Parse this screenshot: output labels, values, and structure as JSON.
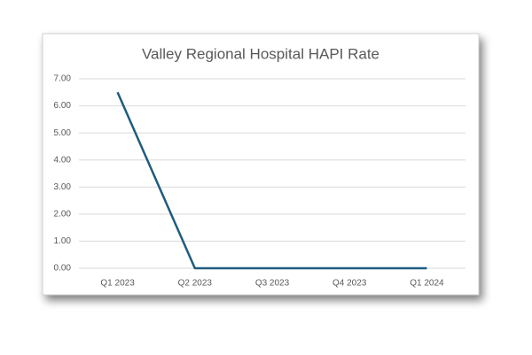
{
  "chart_data": {
    "type": "line",
    "title": "Valley Regional Hospital HAPI Rate",
    "categories": [
      "Q1 2023",
      "Q2 2023",
      "Q3 2023",
      "Q4 2023",
      "Q1 2024"
    ],
    "values": [
      6.5,
      0,
      0,
      0,
      0
    ],
    "color": "#1f5c7e",
    "ylim": [
      0,
      7
    ],
    "yticks": [
      {
        "value": 0,
        "label": "0.00"
      },
      {
        "value": 1,
        "label": "1.00"
      },
      {
        "value": 2,
        "label": "2.00"
      },
      {
        "value": 3,
        "label": "3.00"
      },
      {
        "value": 4,
        "label": "4.00"
      },
      {
        "value": 5,
        "label": "5.00"
      },
      {
        "value": 6,
        "label": "6.00"
      },
      {
        "value": 7,
        "label": "7.00"
      }
    ],
    "grid": true
  }
}
